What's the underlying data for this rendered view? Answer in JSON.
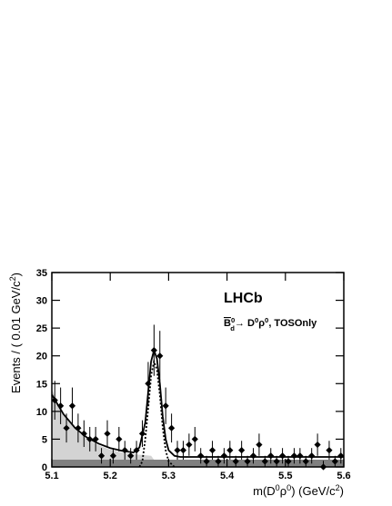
{
  "chart_data": {
    "type": "histogram_fit",
    "x_label_parts": [
      {
        "text": "m(D",
        "shift": "base"
      },
      {
        "text": "0",
        "shift": "sup"
      },
      {
        "text": "ρ",
        "shift": "base"
      },
      {
        "text": "0",
        "shift": "sup"
      },
      {
        "text": ") (GeV/c",
        "shift": "base"
      },
      {
        "text": "2",
        "shift": "sup"
      },
      {
        "text": ")",
        "shift": "base"
      }
    ],
    "y_label_parts": [
      {
        "text": "Events / ( 0.01 GeV/c",
        "shift": "base"
      },
      {
        "text": "2",
        "shift": "sup"
      },
      {
        "text": ")",
        "shift": "base"
      }
    ],
    "experiment": "LHCb",
    "annotation_parts": [
      {
        "text": "B",
        "shift": "over"
      },
      {
        "text": "0",
        "shift": "sup"
      },
      {
        "text": "d",
        "shift": "sub"
      },
      {
        "text": "→ D",
        "shift": "base"
      },
      {
        "text": "0",
        "shift": "sup"
      },
      {
        "text": "ρ",
        "shift": "base"
      },
      {
        "text": "0",
        "shift": "sup"
      },
      {
        "text": ", TOSOnly",
        "shift": "base"
      }
    ],
    "x": [
      5.105,
      5.115,
      5.125,
      5.135,
      5.145,
      5.155,
      5.165,
      5.175,
      5.185,
      5.195,
      5.205,
      5.215,
      5.225,
      5.235,
      5.245,
      5.255,
      5.265,
      5.275,
      5.285,
      5.295,
      5.305,
      5.315,
      5.325,
      5.335,
      5.345,
      5.355,
      5.365,
      5.375,
      5.385,
      5.395,
      5.405,
      5.415,
      5.425,
      5.435,
      5.445,
      5.455,
      5.465,
      5.475,
      5.485,
      5.495,
      5.505,
      5.515,
      5.525,
      5.535,
      5.545,
      5.555,
      5.565,
      5.575,
      5.585,
      5.595
    ],
    "values": [
      12,
      11,
      7,
      11,
      7,
      6,
      5,
      5,
      2,
      6,
      2,
      5,
      3,
      2,
      3,
      6,
      15,
      21,
      20,
      11,
      7,
      3,
      3,
      4,
      5,
      2,
      1,
      3,
      1,
      2,
      3,
      1,
      3,
      1,
      2,
      4,
      1,
      2,
      1,
      2,
      1,
      2,
      2,
      1,
      2,
      4,
      0,
      3,
      1,
      2
    ],
    "errors": [
      3.5,
      3.3,
      2.6,
      3.3,
      2.6,
      2.4,
      2.2,
      2.2,
      1.4,
      2.4,
      1.4,
      2.2,
      1.7,
      1.4,
      1.7,
      2.4,
      3.9,
      4.6,
      4.5,
      3.3,
      2.6,
      1.7,
      1.7,
      2,
      2.2,
      1.4,
      1,
      1.7,
      1,
      1.4,
      1.7,
      1,
      1.7,
      1,
      1.4,
      2,
      1,
      1.4,
      1,
      1.4,
      1,
      1.4,
      1.4,
      1,
      1.4,
      2,
      1.1,
      1.7,
      1,
      1.4
    ],
    "curves": [
      {
        "kind": "area",
        "color": "#d3d3d3",
        "x": [
          5.1,
          5.11,
          5.12,
          5.13,
          5.14,
          5.15,
          5.16,
          5.18,
          5.2,
          5.22,
          5.24,
          5.26,
          5.27,
          5.275
        ],
        "y": [
          14,
          11.5,
          9.5,
          8,
          6.8,
          5.8,
          5,
          3.9,
          3.1,
          2.6,
          2.3,
          2.1,
          2,
          1.3
        ]
      },
      {
        "kind": "area",
        "color": "#808080",
        "x": [
          5.1,
          5.6
        ],
        "y": [
          1.3,
          1.3
        ]
      },
      {
        "kind": "line",
        "color": "#000000",
        "dash": "none",
        "x": [
          5.1,
          5.12,
          5.14,
          5.16,
          5.18,
          5.2,
          5.22,
          5.24,
          5.25,
          5.26,
          5.265,
          5.27,
          5.275,
          5.28,
          5.285,
          5.29,
          5.295,
          5.3,
          5.31,
          5.32,
          5.35,
          5.4,
          5.5,
          5.6
        ],
        "y": [
          13,
          9.5,
          7,
          5.3,
          4.2,
          3.4,
          2.9,
          2.6,
          3.5,
          8,
          13.5,
          19,
          21,
          19.5,
          15,
          9,
          5,
          3,
          2,
          1.8,
          1.8,
          1.8,
          1.8,
          1.8
        ]
      },
      {
        "kind": "line",
        "color": "#000000",
        "dash": "2 2",
        "x": [
          5.25,
          5.255,
          5.26,
          5.265,
          5.27,
          5.275,
          5.28,
          5.285,
          5.29,
          5.295,
          5.3,
          5.31
        ],
        "y": [
          0,
          1,
          5,
          10.5,
          16.5,
          19,
          17.5,
          13,
          7,
          3,
          1,
          0
        ]
      }
    ],
    "marker_color": "#000000",
    "xlim": [
      5.1,
      5.6
    ],
    "xticks": [
      5.1,
      5.2,
      5.3,
      5.4,
      5.5,
      5.6
    ],
    "ylim": [
      0,
      35
    ],
    "yticks": [
      0,
      5,
      10,
      15,
      20,
      25,
      30,
      35
    ]
  }
}
